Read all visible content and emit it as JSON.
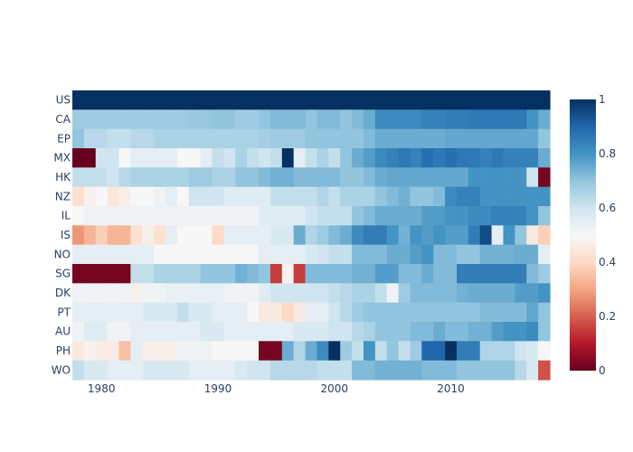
{
  "chart_data": {
    "type": "heatmap",
    "title": "",
    "xlabel": "",
    "ylabel": "",
    "colorscale": "RdBu",
    "zlim": [
      0,
      1
    ],
    "colorbar_ticks": [
      "0",
      "0.2",
      "0.4",
      "0.6",
      "0.8",
      "1"
    ],
    "colorbar_tick_values": [
      0,
      0.2,
      0.4,
      0.6,
      0.8,
      1
    ],
    "x_start": 1978,
    "x_end": 2018,
    "x_ticks": [
      1980,
      1990,
      2000,
      2010
    ],
    "y_categories": [
      "US",
      "CA",
      "EP",
      "MX",
      "HK",
      "NZ",
      "IL",
      "IS",
      "NO",
      "SG",
      "DK",
      "PT",
      "AU",
      "PH",
      "WO"
    ],
    "rows": [
      [
        1,
        1,
        1,
        1,
        1,
        1,
        1,
        1,
        1,
        1,
        1,
        1,
        1,
        1,
        1,
        1,
        1,
        1,
        1,
        1,
        1,
        1,
        1,
        1,
        1,
        1,
        1,
        1,
        1,
        1,
        1,
        1,
        1,
        1,
        1,
        1,
        1,
        1,
        1,
        1,
        1
      ],
      [
        0.68,
        0.68,
        0.68,
        0.68,
        0.68,
        0.68,
        0.68,
        0.68,
        0.68,
        0.68,
        0.69,
        0.69,
        0.7,
        0.7,
        0.68,
        0.68,
        0.7,
        0.72,
        0.72,
        0.72,
        0.7,
        0.72,
        0.72,
        0.7,
        0.72,
        0.75,
        0.82,
        0.82,
        0.82,
        0.82,
        0.84,
        0.84,
        0.85,
        0.85,
        0.86,
        0.86,
        0.86,
        0.86,
        0.86,
        0.8,
        0.75
      ],
      [
        0.7,
        0.64,
        0.64,
        0.62,
        0.62,
        0.64,
        0.64,
        0.66,
        0.66,
        0.66,
        0.66,
        0.66,
        0.66,
        0.66,
        0.66,
        0.66,
        0.67,
        0.68,
        0.68,
        0.68,
        0.7,
        0.7,
        0.7,
        0.7,
        0.7,
        0.72,
        0.75,
        0.75,
        0.75,
        0.75,
        0.75,
        0.75,
        0.76,
        0.76,
        0.76,
        0.76,
        0.76,
        0.76,
        0.76,
        0.76,
        0.7
      ],
      [
        0.0,
        0.0,
        0.6,
        0.6,
        0.5,
        0.55,
        0.55,
        0.55,
        0.55,
        0.5,
        0.5,
        0.55,
        0.62,
        0.6,
        0.66,
        0.62,
        0.6,
        0.62,
        1.0,
        0.55,
        0.62,
        0.66,
        0.62,
        0.7,
        0.75,
        0.78,
        0.82,
        0.84,
        0.86,
        0.84,
        0.88,
        0.86,
        0.88,
        0.86,
        0.86,
        0.84,
        0.86,
        0.84,
        0.84,
        0.84,
        0.75
      ],
      [
        0.62,
        0.62,
        0.62,
        0.6,
        0.64,
        0.66,
        0.66,
        0.66,
        0.66,
        0.66,
        0.68,
        0.68,
        0.66,
        0.66,
        0.7,
        0.7,
        0.72,
        0.74,
        0.74,
        0.72,
        0.72,
        0.72,
        0.72,
        0.7,
        0.7,
        0.72,
        0.75,
        0.76,
        0.76,
        0.76,
        0.76,
        0.76,
        0.76,
        0.76,
        0.8,
        0.8,
        0.8,
        0.8,
        0.8,
        0.6,
        0.02
      ],
      [
        0.42,
        0.48,
        0.5,
        0.44,
        0.47,
        0.5,
        0.5,
        0.52,
        0.55,
        0.5,
        0.6,
        0.6,
        0.6,
        0.56,
        0.56,
        0.56,
        0.56,
        0.62,
        0.62,
        0.62,
        0.62,
        0.65,
        0.62,
        0.66,
        0.66,
        0.66,
        0.7,
        0.72,
        0.74,
        0.7,
        0.7,
        0.72,
        0.82,
        0.84,
        0.84,
        0.8,
        0.8,
        0.8,
        0.8,
        0.8,
        0.8
      ],
      [
        0.5,
        0.52,
        0.52,
        0.52,
        0.52,
        0.52,
        0.52,
        0.52,
        0.52,
        0.52,
        0.52,
        0.52,
        0.52,
        0.52,
        0.52,
        0.52,
        0.56,
        0.56,
        0.56,
        0.56,
        0.6,
        0.62,
        0.62,
        0.62,
        0.7,
        0.72,
        0.75,
        0.75,
        0.75,
        0.75,
        0.78,
        0.78,
        0.8,
        0.8,
        0.82,
        0.82,
        0.84,
        0.84,
        0.84,
        0.8,
        0.7
      ],
      [
        0.28,
        0.33,
        0.38,
        0.33,
        0.33,
        0.42,
        0.47,
        0.42,
        0.55,
        0.5,
        0.5,
        0.5,
        0.4,
        0.55,
        0.55,
        0.55,
        0.55,
        0.58,
        0.58,
        0.75,
        0.65,
        0.68,
        0.72,
        0.75,
        0.82,
        0.85,
        0.85,
        0.8,
        0.74,
        0.8,
        0.78,
        0.8,
        0.78,
        0.78,
        0.85,
        0.95,
        0.55,
        0.8,
        0.7,
        0.45,
        0.38
      ],
      [
        0.55,
        0.55,
        0.55,
        0.55,
        0.55,
        0.55,
        0.55,
        0.5,
        0.5,
        0.5,
        0.5,
        0.5,
        0.5,
        0.5,
        0.5,
        0.5,
        0.55,
        0.55,
        0.55,
        0.55,
        0.58,
        0.6,
        0.62,
        0.62,
        0.72,
        0.72,
        0.72,
        0.75,
        0.75,
        0.78,
        0.8,
        0.72,
        0.72,
        0.7,
        0.7,
        0.74,
        0.74,
        0.74,
        0.75,
        0.75,
        0.55
      ],
      [
        0.02,
        0.02,
        0.02,
        0.02,
        0.02,
        0.62,
        0.62,
        0.66,
        0.66,
        0.66,
        0.66,
        0.7,
        0.7,
        0.7,
        0.74,
        0.72,
        0.7,
        0.15,
        0.48,
        0.15,
        0.72,
        0.72,
        0.72,
        0.72,
        0.74,
        0.74,
        0.78,
        0.78,
        0.72,
        0.72,
        0.75,
        0.72,
        0.72,
        0.85,
        0.85,
        0.85,
        0.85,
        0.85,
        0.85,
        0.72,
        0.68
      ],
      [
        0.52,
        0.52,
        0.52,
        0.52,
        0.52,
        0.48,
        0.52,
        0.52,
        0.54,
        0.54,
        0.54,
        0.54,
        0.54,
        0.52,
        0.52,
        0.52,
        0.56,
        0.6,
        0.6,
        0.6,
        0.6,
        0.6,
        0.62,
        0.64,
        0.66,
        0.66,
        0.62,
        0.52,
        0.68,
        0.72,
        0.72,
        0.72,
        0.72,
        0.74,
        0.75,
        0.75,
        0.75,
        0.75,
        0.78,
        0.78,
        0.8
      ],
      [
        0.55,
        0.55,
        0.55,
        0.55,
        0.55,
        0.55,
        0.58,
        0.58,
        0.58,
        0.62,
        0.58,
        0.58,
        0.55,
        0.55,
        0.55,
        0.5,
        0.45,
        0.45,
        0.4,
        0.45,
        0.55,
        0.55,
        0.6,
        0.64,
        0.68,
        0.7,
        0.7,
        0.7,
        0.7,
        0.7,
        0.7,
        0.7,
        0.7,
        0.7,
        0.7,
        0.72,
        0.72,
        0.72,
        0.72,
        0.76,
        0.7
      ],
      [
        0.52,
        0.56,
        0.56,
        0.52,
        0.52,
        0.55,
        0.55,
        0.55,
        0.55,
        0.55,
        0.55,
        0.58,
        0.58,
        0.55,
        0.55,
        0.55,
        0.55,
        0.55,
        0.55,
        0.58,
        0.58,
        0.58,
        0.6,
        0.6,
        0.64,
        0.66,
        0.7,
        0.7,
        0.7,
        0.72,
        0.72,
        0.75,
        0.72,
        0.72,
        0.74,
        0.74,
        0.78,
        0.8,
        0.8,
        0.82,
        0.7
      ],
      [
        0.45,
        0.48,
        0.46,
        0.46,
        0.35,
        0.55,
        0.47,
        0.47,
        0.47,
        0.52,
        0.52,
        0.52,
        0.5,
        0.5,
        0.5,
        0.5,
        0.02,
        0.02,
        0.75,
        0.65,
        0.75,
        0.82,
        1.0,
        0.68,
        0.62,
        0.8,
        0.62,
        0.7,
        0.62,
        0.68,
        0.9,
        0.9,
        1.0,
        0.85,
        0.85,
        0.65,
        0.65,
        0.65,
        0.6,
        0.58,
        0.5
      ],
      [
        0.62,
        0.58,
        0.58,
        0.55,
        0.55,
        0.55,
        0.58,
        0.58,
        0.58,
        0.58,
        0.55,
        0.55,
        0.55,
        0.55,
        0.58,
        0.6,
        0.6,
        0.64,
        0.64,
        0.64,
        0.64,
        0.62,
        0.62,
        0.62,
        0.72,
        0.72,
        0.74,
        0.74,
        0.74,
        0.74,
        0.72,
        0.72,
        0.72,
        0.7,
        0.7,
        0.7,
        0.7,
        0.7,
        0.64,
        0.58,
        0.18
      ]
    ]
  }
}
